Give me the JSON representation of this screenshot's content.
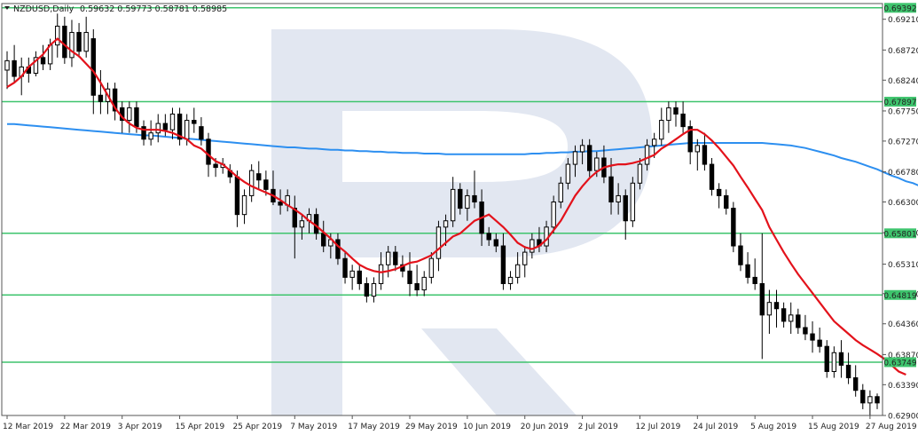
{
  "header": {
    "symbol": "NZDUSD,Daily",
    "ohlc": "0.59632 0.59773 0.58781 0.58985"
  },
  "colors": {
    "frame": "#555555",
    "candle": "#000000",
    "ema_fast": "#e3121b",
    "ma_slow": "#2d8ff0",
    "level_line": "#3ec46d",
    "level_tag_bg": "#3ec46d",
    "level_tag_text": "#ffffff",
    "watermark": "#dde3ee"
  },
  "chart_data": {
    "type": "candlestick",
    "symbol": "NZDUSD",
    "timeframe": "Daily",
    "y_range": [
      0.629,
      0.6946
    ],
    "y_ticks": [
      "0.69210",
      "0.68720",
      "0.68240",
      "0.67750",
      "0.67270",
      "0.66780",
      "0.66300",
      "0.65810",
      "0.65310",
      "0.64840",
      "0.64360",
      "0.63870",
      "0.63390",
      "0.62900"
    ],
    "x_labels": [
      "12 Mar 2019",
      "22 Mar 2019",
      "3 Apr 2019",
      "15 Apr 2019",
      "25 Apr 2019",
      "7 May 2019",
      "17 May 2019",
      "29 May 2019",
      "10 Jun 2019",
      "20 Jun 2019",
      "2 Jul 2019",
      "12 Jul 2019",
      "24 Jul 2019",
      "5 Aug 2019",
      "15 Aug 2019",
      "27 Aug 2019"
    ],
    "x_label_index": [
      0,
      8,
      16,
      24,
      32,
      40,
      48,
      56,
      64,
      72,
      80,
      88,
      96,
      104,
      112,
      120
    ],
    "levels": [
      {
        "label": "0.69392",
        "value": 0.69392
      },
      {
        "label": "0.67897",
        "value": 0.67897
      },
      {
        "label": "0.65801",
        "value": 0.65801
      },
      {
        "label": "0.64819",
        "value": 0.64819
      },
      {
        "label": "0.63749",
        "value": 0.63749
      }
    ],
    "candles": [
      [
        0.684,
        0.687,
        0.681,
        0.6855
      ],
      [
        0.6855,
        0.688,
        0.682,
        0.683
      ],
      [
        0.683,
        0.686,
        0.68,
        0.6845
      ],
      [
        0.6845,
        0.686,
        0.682,
        0.6835
      ],
      [
        0.6835,
        0.687,
        0.683,
        0.686
      ],
      [
        0.686,
        0.688,
        0.684,
        0.685
      ],
      [
        0.685,
        0.689,
        0.684,
        0.688
      ],
      [
        0.688,
        0.693,
        0.686,
        0.691
      ],
      [
        0.691,
        0.6925,
        0.685,
        0.686
      ],
      [
        0.686,
        0.692,
        0.6845,
        0.69
      ],
      [
        0.69,
        0.6915,
        0.686,
        0.687
      ],
      [
        0.687,
        0.6925,
        0.686,
        0.69
      ],
      [
        0.689,
        0.6905,
        0.677,
        0.68
      ],
      [
        0.68,
        0.684,
        0.677,
        0.679
      ],
      [
        0.679,
        0.682,
        0.677,
        0.681
      ],
      [
        0.681,
        0.682,
        0.676,
        0.6775
      ],
      [
        0.678,
        0.679,
        0.674,
        0.676
      ],
      [
        0.676,
        0.679,
        0.674,
        0.678
      ],
      [
        0.678,
        0.679,
        0.674,
        0.675
      ],
      [
        0.675,
        0.676,
        0.672,
        0.673
      ],
      [
        0.673,
        0.676,
        0.672,
        0.674
      ],
      [
        0.674,
        0.677,
        0.6725,
        0.6755
      ],
      [
        0.6755,
        0.677,
        0.6735,
        0.6745
      ],
      [
        0.6745,
        0.678,
        0.673,
        0.677
      ],
      [
        0.677,
        0.678,
        0.672,
        0.673
      ],
      [
        0.673,
        0.677,
        0.672,
        0.676
      ],
      [
        0.676,
        0.678,
        0.674,
        0.6755
      ],
      [
        0.675,
        0.6765,
        0.672,
        0.673
      ],
      [
        0.673,
        0.674,
        0.667,
        0.669
      ],
      [
        0.669,
        0.67,
        0.667,
        0.6685
      ],
      [
        0.6685,
        0.67,
        0.6675,
        0.669
      ],
      [
        0.668,
        0.669,
        0.666,
        0.667
      ],
      [
        0.667,
        0.668,
        0.659,
        0.661
      ],
      [
        0.661,
        0.665,
        0.6595,
        0.664
      ],
      [
        0.664,
        0.669,
        0.663,
        0.668
      ],
      [
        0.6675,
        0.6695,
        0.665,
        0.6665
      ],
      [
        0.6665,
        0.668,
        0.664,
        0.665
      ],
      [
        0.665,
        0.668,
        0.6625,
        0.663
      ],
      [
        0.663,
        0.665,
        0.661,
        0.6625
      ],
      [
        0.6625,
        0.665,
        0.6615,
        0.664
      ],
      [
        0.662,
        0.664,
        0.654,
        0.659
      ],
      [
        0.659,
        0.661,
        0.657,
        0.66
      ],
      [
        0.66,
        0.662,
        0.658,
        0.661
      ],
      [
        0.661,
        0.662,
        0.657,
        0.658
      ],
      [
        0.658,
        0.66,
        0.655,
        0.656
      ],
      [
        0.656,
        0.658,
        0.654,
        0.657
      ],
      [
        0.657,
        0.658,
        0.653,
        0.654
      ],
      [
        0.654,
        0.655,
        0.65,
        0.651
      ],
      [
        0.651,
        0.653,
        0.649,
        0.652
      ],
      [
        0.652,
        0.653,
        0.649,
        0.65
      ],
      [
        0.65,
        0.651,
        0.647,
        0.648
      ],
      [
        0.648,
        0.651,
        0.647,
        0.65
      ],
      [
        0.65,
        0.655,
        0.649,
        0.653
      ],
      [
        0.653,
        0.656,
        0.651,
        0.655
      ],
      [
        0.655,
        0.656,
        0.652,
        0.653
      ],
      [
        0.653,
        0.6545,
        0.651,
        0.652
      ],
      [
        0.652,
        0.655,
        0.648,
        0.65
      ],
      [
        0.65,
        0.653,
        0.648,
        0.649
      ],
      [
        0.649,
        0.652,
        0.648,
        0.651
      ],
      [
        0.651,
        0.655,
        0.65,
        0.654
      ],
      [
        0.654,
        0.66,
        0.652,
        0.659
      ],
      [
        0.659,
        0.661,
        0.656,
        0.66
      ],
      [
        0.66,
        0.667,
        0.659,
        0.665
      ],
      [
        0.665,
        0.666,
        0.661,
        0.662
      ],
      [
        0.662,
        0.665,
        0.66,
        0.664
      ],
      [
        0.664,
        0.668,
        0.662,
        0.663
      ],
      [
        0.663,
        0.665,
        0.656,
        0.658
      ],
      [
        0.658,
        0.659,
        0.656,
        0.657
      ],
      [
        0.657,
        0.658,
        0.655,
        0.656
      ],
      [
        0.656,
        0.658,
        0.649,
        0.65
      ],
      [
        0.65,
        0.652,
        0.649,
        0.651
      ],
      [
        0.651,
        0.655,
        0.65,
        0.653
      ],
      [
        0.653,
        0.656,
        0.651,
        0.655
      ],
      [
        0.655,
        0.658,
        0.654,
        0.657
      ],
      [
        0.657,
        0.659,
        0.655,
        0.656
      ],
      [
        0.656,
        0.66,
        0.655,
        0.659
      ],
      [
        0.659,
        0.664,
        0.658,
        0.663
      ],
      [
        0.663,
        0.667,
        0.662,
        0.666
      ],
      [
        0.666,
        0.67,
        0.665,
        0.669
      ],
      [
        0.669,
        0.672,
        0.667,
        0.671
      ],
      [
        0.671,
        0.673,
        0.669,
        0.672
      ],
      [
        0.672,
        0.673,
        0.667,
        0.668
      ],
      [
        0.668,
        0.671,
        0.667,
        0.67
      ],
      [
        0.67,
        0.672,
        0.666,
        0.667
      ],
      [
        0.667,
        0.67,
        0.661,
        0.663
      ],
      [
        0.663,
        0.666,
        0.661,
        0.664
      ],
      [
        0.664,
        0.665,
        0.657,
        0.66
      ],
      [
        0.66,
        0.667,
        0.659,
        0.666
      ],
      [
        0.666,
        0.67,
        0.665,
        0.669
      ],
      [
        0.669,
        0.673,
        0.668,
        0.672
      ],
      [
        0.672,
        0.674,
        0.67,
        0.673
      ],
      [
        0.673,
        0.678,
        0.672,
        0.676
      ],
      [
        0.676,
        0.679,
        0.674,
        0.678
      ],
      [
        0.678,
        0.679,
        0.675,
        0.677
      ],
      [
        0.677,
        0.679,
        0.674,
        0.675
      ],
      [
        0.675,
        0.676,
        0.669,
        0.671
      ],
      [
        0.671,
        0.673,
        0.668,
        0.672
      ],
      [
        0.672,
        0.674,
        0.668,
        0.669
      ],
      [
        0.669,
        0.67,
        0.664,
        0.665
      ],
      [
        0.665,
        0.666,
        0.662,
        0.664
      ],
      [
        0.664,
        0.665,
        0.661,
        0.662
      ],
      [
        0.662,
        0.663,
        0.655,
        0.656
      ],
      [
        0.656,
        0.658,
        0.652,
        0.653
      ],
      [
        0.653,
        0.655,
        0.65,
        0.651
      ],
      [
        0.651,
        0.654,
        0.649,
        0.65
      ],
      [
        0.65,
        0.658,
        0.638,
        0.645
      ],
      [
        0.645,
        0.649,
        0.642,
        0.647
      ],
      [
        0.647,
        0.649,
        0.643,
        0.646
      ],
      [
        0.646,
        0.647,
        0.643,
        0.644
      ],
      [
        0.644,
        0.647,
        0.642,
        0.645
      ],
      [
        0.645,
        0.646,
        0.642,
        0.643
      ],
      [
        0.643,
        0.645,
        0.641,
        0.642
      ],
      [
        0.642,
        0.644,
        0.639,
        0.641
      ],
      [
        0.641,
        0.643,
        0.639,
        0.64
      ],
      [
        0.64,
        0.641,
        0.635,
        0.636
      ],
      [
        0.636,
        0.64,
        0.635,
        0.639
      ],
      [
        0.639,
        0.641,
        0.635,
        0.637
      ],
      [
        0.637,
        0.639,
        0.634,
        0.635
      ],
      [
        0.635,
        0.637,
        0.632,
        0.633
      ],
      [
        0.633,
        0.634,
        0.63,
        0.631
      ],
      [
        0.631,
        0.633,
        0.629,
        0.632
      ],
      [
        0.632,
        0.6325,
        0.63,
        0.631
      ]
    ],
    "ema_fast": [
      0.6813,
      0.682,
      0.683,
      0.6845,
      0.6855,
      0.6865,
      0.688,
      0.689,
      0.688,
      0.687,
      0.6862,
      0.685,
      0.6838,
      0.682,
      0.68,
      0.678,
      0.6765,
      0.6755,
      0.6748,
      0.6745,
      0.6745,
      0.6745,
      0.6743,
      0.674,
      0.6735,
      0.673,
      0.672,
      0.6715,
      0.6705,
      0.6695,
      0.669,
      0.668,
      0.667,
      0.6662,
      0.6655,
      0.665,
      0.6645,
      0.664,
      0.6633,
      0.6625,
      0.6618,
      0.661,
      0.66,
      0.6592,
      0.6582,
      0.6572,
      0.656,
      0.6551,
      0.654,
      0.653,
      0.6524,
      0.652,
      0.6518,
      0.652,
      0.6523,
      0.6528,
      0.6533,
      0.6535,
      0.654,
      0.6545,
      0.6555,
      0.6565,
      0.6575,
      0.658,
      0.659,
      0.66,
      0.6605,
      0.661,
      0.66,
      0.659,
      0.6578,
      0.6565,
      0.6558,
      0.6555,
      0.656,
      0.657,
      0.6585,
      0.66,
      0.662,
      0.664,
      0.6655,
      0.6668,
      0.6678,
      0.6685,
      0.6688,
      0.669,
      0.669,
      0.6692,
      0.6695,
      0.67,
      0.6705,
      0.6715,
      0.6722,
      0.673,
      0.6738,
      0.6745,
      0.6745,
      0.6738,
      0.6728,
      0.6716,
      0.6702,
      0.6688,
      0.667,
      0.6653,
      0.6635,
      0.6617,
      0.659,
      0.657,
      0.655,
      0.6532,
      0.6515,
      0.65,
      0.6485,
      0.647,
      0.6455,
      0.644,
      0.643,
      0.642,
      0.641,
      0.6402,
      0.6395,
      0.6388,
      0.638,
      0.637,
      0.636,
      0.6355
    ],
    "ma_slow": [
      0.6754,
      0.6754,
      0.6753,
      0.6752,
      0.6751,
      0.675,
      0.6749,
      0.6748,
      0.6747,
      0.6746,
      0.6745,
      0.6744,
      0.6743,
      0.6742,
      0.6741,
      0.674,
      0.6739,
      0.6738,
      0.6737,
      0.6736,
      0.6736,
      0.6735,
      0.6734,
      0.6733,
      0.6732,
      0.6731,
      0.673,
      0.6729,
      0.6728,
      0.6727,
      0.6726,
      0.6725,
      0.6724,
      0.6723,
      0.6722,
      0.6721,
      0.672,
      0.6719,
      0.6718,
      0.6717,
      0.6717,
      0.6716,
      0.6715,
      0.6715,
      0.6714,
      0.6713,
      0.6713,
      0.6712,
      0.6712,
      0.6711,
      0.6711,
      0.671,
      0.671,
      0.6709,
      0.6709,
      0.6708,
      0.6708,
      0.6708,
      0.6707,
      0.6707,
      0.6707,
      0.6706,
      0.6706,
      0.6706,
      0.6706,
      0.6706,
      0.6706,
      0.6706,
      0.6706,
      0.6706,
      0.6706,
      0.6706,
      0.6706,
      0.6707,
      0.6707,
      0.6708,
      0.6708,
      0.6709,
      0.6709,
      0.671,
      0.671,
      0.6711,
      0.6711,
      0.6712,
      0.6713,
      0.6714,
      0.6715,
      0.6716,
      0.6717,
      0.6718,
      0.6719,
      0.672,
      0.6721,
      0.6722,
      0.6723,
      0.6724,
      0.6724,
      0.6724,
      0.6724,
      0.6724,
      0.6724,
      0.6724,
      0.6724,
      0.6724,
      0.6724,
      0.6724,
      0.6723,
      0.6722,
      0.6721,
      0.672,
      0.6718,
      0.6716,
      0.6713,
      0.671,
      0.6707,
      0.6704,
      0.67,
      0.6697,
      0.6694,
      0.669,
      0.6686,
      0.6682,
      0.6677,
      0.6672,
      0.6668,
      0.6663,
      0.666,
      0.6655
    ]
  }
}
